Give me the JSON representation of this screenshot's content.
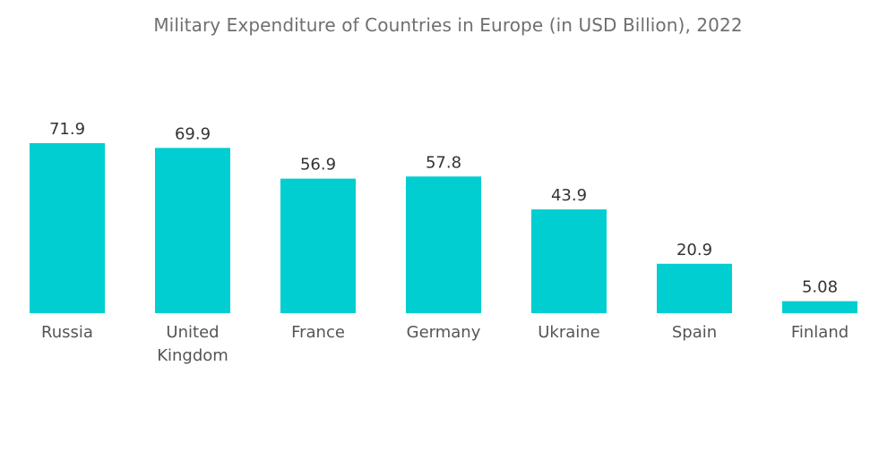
{
  "chart_data": {
    "type": "bar",
    "title": "Military Expenditure of Countries in Europe (in USD Billion), 2022",
    "categories": [
      [
        "Russia"
      ],
      [
        "United",
        "Kingdom"
      ],
      [
        "France"
      ],
      [
        "Germany"
      ],
      [
        "Ukraine"
      ],
      [
        "Spain"
      ],
      [
        "Finland"
      ]
    ],
    "values": [
      71.9,
      69.9,
      56.9,
      57.8,
      43.9,
      20.9,
      5.08
    ],
    "value_labels": [
      "71.9",
      "69.9",
      "56.9",
      "57.8",
      "43.9",
      "20.9",
      "5.08"
    ],
    "xlabel": "",
    "ylabel": "",
    "ylim": [
      0,
      71.9
    ],
    "grid": false,
    "legend": "none",
    "bar_color": "#00CED1"
  }
}
